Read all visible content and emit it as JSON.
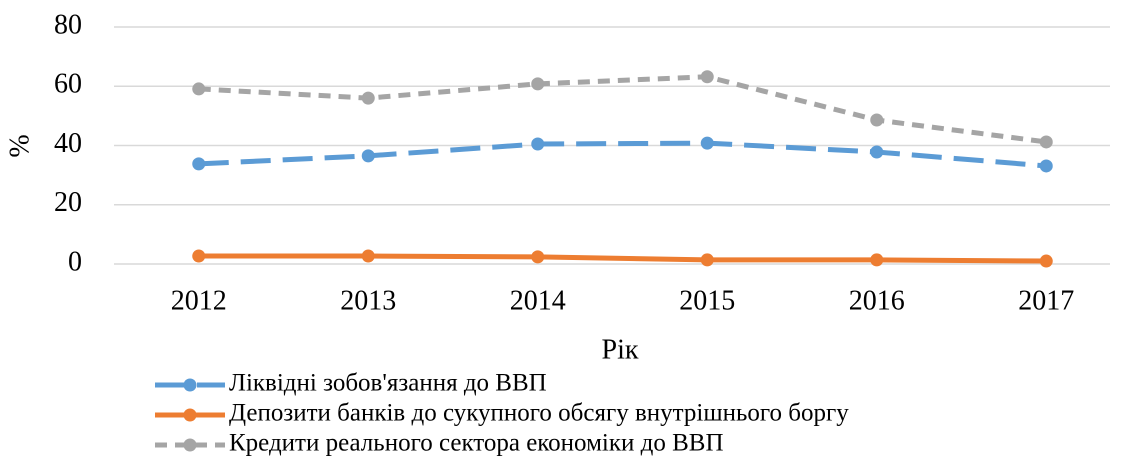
{
  "chart_data": {
    "type": "line",
    "categories": [
      "2012",
      "2013",
      "2014",
      "2015",
      "2016",
      "2017"
    ],
    "xlabel": "Рік",
    "ylabel": "%",
    "ylim": [
      0,
      80
    ],
    "yticks": [
      0,
      20,
      40,
      60,
      80
    ],
    "grid": true,
    "legend": "bottom",
    "series": [
      {
        "name": "Ліквідні зобов'язання до ВВП",
        "color": "#5b9bd5",
        "dash": "long-dash",
        "values": [
          33.8,
          36.5,
          40.5,
          40.8,
          37.8,
          33.1
        ]
      },
      {
        "name": "Депозити банків до сукупного обсягу внутрішнього боргу",
        "color": "#ed7d31",
        "dash": "solid",
        "values": [
          2.7,
          2.7,
          2.4,
          1.4,
          1.4,
          1.0
        ]
      },
      {
        "name": "Кредити реального сектора економіки до ВВП",
        "color": "#a5a5a5",
        "dash": "short-dash",
        "values": [
          59.1,
          56.0,
          60.8,
          63.2,
          48.6,
          41.2
        ]
      }
    ]
  }
}
